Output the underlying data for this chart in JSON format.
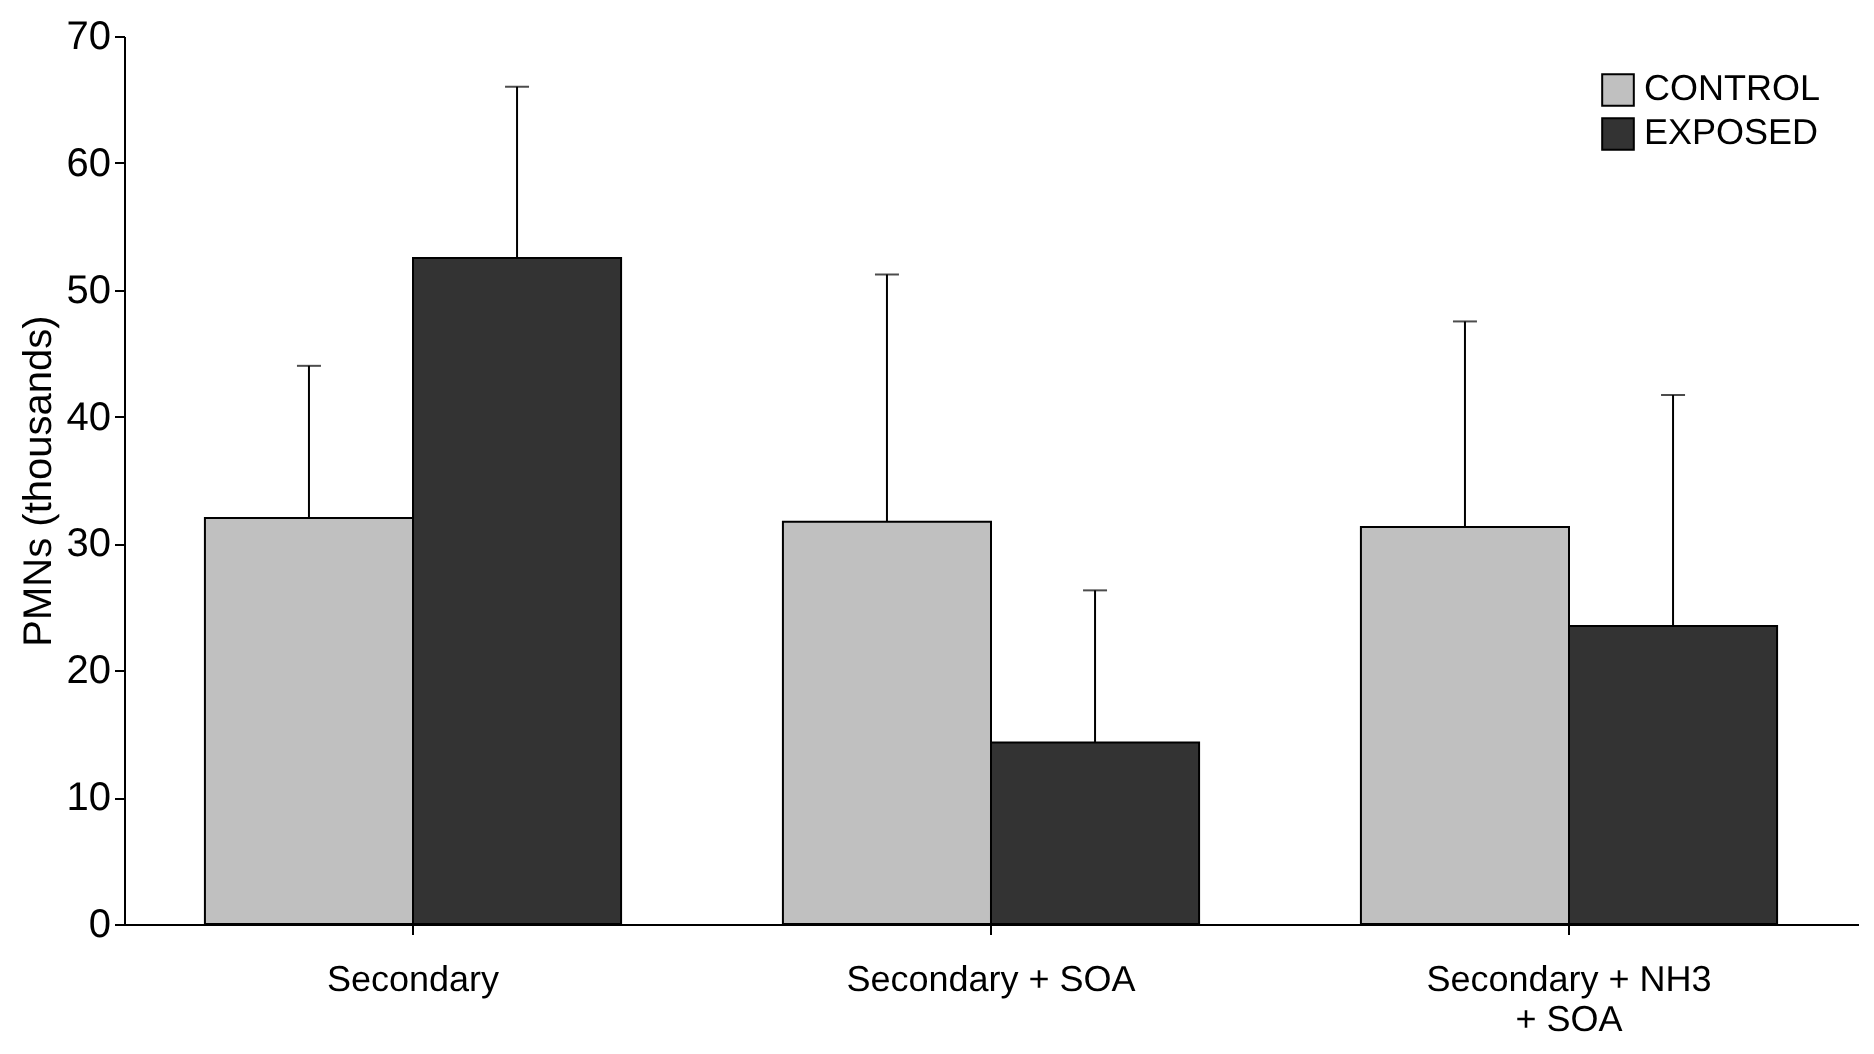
{
  "chart_data": {
    "type": "bar",
    "ylabel": "PMNs (thousands)",
    "categories": [
      "Secondary",
      "Secondary + SOA",
      "Secondary + NH3 + SOA"
    ],
    "series": [
      {
        "name": "CONTROL",
        "color": "#c0c0c0",
        "values": [
          32,
          31.7,
          31.3
        ],
        "errors": [
          [
            32,
            44
          ],
          [
            31.7,
            51.2
          ],
          [
            31.3,
            47.5
          ]
        ]
      },
      {
        "name": "EXPOSED",
        "color": "#333333",
        "values": [
          52.5,
          14.3,
          23.5
        ],
        "errors": [
          [
            52.5,
            66
          ],
          [
            14.3,
            26.3
          ],
          [
            23.5,
            41.7
          ]
        ]
      }
    ],
    "ylim": [
      0,
      70
    ],
    "yticks": [
      0,
      10,
      20,
      30,
      40,
      50,
      60,
      70
    ],
    "grid": false,
    "legend": "top right"
  }
}
